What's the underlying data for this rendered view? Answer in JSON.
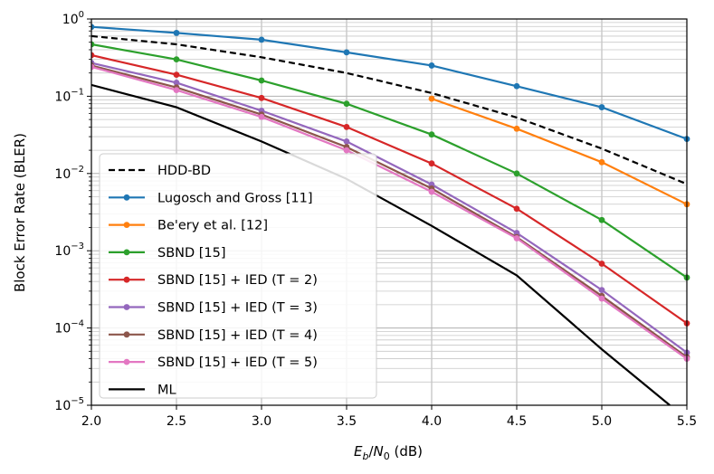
{
  "chart_data": {
    "type": "line",
    "xlabel": "Eb/N0 (dB)",
    "ylabel": "Block Error Rate (BLER)",
    "xlim": [
      2.0,
      5.5
    ],
    "ylim": [
      1e-05,
      1
    ],
    "yscale": "log",
    "grid": true,
    "legend_position": "lower-left",
    "x_ticks": [
      "2.0",
      "2.5",
      "3.0",
      "3.5",
      "4.0",
      "4.5",
      "5.0",
      "5.5"
    ],
    "y_ticks": [
      "10^0",
      "10^-1",
      "10^-2",
      "10^-3",
      "10^-4",
      "10^-5"
    ],
    "series": [
      {
        "name": "HDD-BD",
        "color": "#000000",
        "style": "dashed",
        "marker": false,
        "x": [
          2.0,
          2.5,
          3.0,
          3.5,
          4.0,
          4.5,
          5.0,
          5.5
        ],
        "y": [
          0.6,
          0.47,
          0.32,
          0.2,
          0.11,
          0.053,
          0.021,
          0.0073
        ]
      },
      {
        "name": "Lugosch and Gross [11]",
        "color": "#1f77b4",
        "style": "solid",
        "marker": true,
        "x": [
          2.0,
          2.5,
          3.0,
          3.5,
          4.0,
          4.5,
          5.0,
          5.5
        ],
        "y": [
          0.79,
          0.66,
          0.54,
          0.37,
          0.25,
          0.135,
          0.072,
          0.028
        ]
      },
      {
        "name": "Be'ery et al. [12]",
        "color": "#ff7f0e",
        "style": "solid",
        "marker": true,
        "x": [
          4.0,
          4.5,
          5.0,
          5.5
        ],
        "y": [
          0.093,
          0.038,
          0.014,
          0.004
        ]
      },
      {
        "name": "SBND [15]",
        "color": "#2ca02c",
        "style": "solid",
        "marker": true,
        "x": [
          2.0,
          2.5,
          3.0,
          3.5,
          4.0,
          4.5,
          5.0,
          5.5
        ],
        "y": [
          0.47,
          0.3,
          0.16,
          0.08,
          0.032,
          0.01,
          0.0025,
          0.00045
        ]
      },
      {
        "name": "SBND [15] + IED (T = 2)",
        "color": "#d62728",
        "style": "solid",
        "marker": true,
        "x": [
          2.0,
          2.5,
          3.0,
          3.5,
          4.0,
          4.5,
          5.0,
          5.5
        ],
        "y": [
          0.34,
          0.19,
          0.095,
          0.04,
          0.0135,
          0.0035,
          0.00068,
          0.000115
        ]
      },
      {
        "name": "SBND [15] + IED (T = 3)",
        "color": "#9467bd",
        "style": "solid",
        "marker": true,
        "x": [
          2.0,
          2.5,
          3.0,
          3.5,
          4.0,
          4.5,
          5.0,
          5.5
        ],
        "y": [
          0.27,
          0.15,
          0.065,
          0.026,
          0.0072,
          0.0017,
          0.00031,
          4.8e-05
        ]
      },
      {
        "name": "SBND [15] + IED (T = 4)",
        "color": "#8c564b",
        "style": "solid",
        "marker": true,
        "x": [
          2.0,
          2.5,
          3.0,
          3.5,
          4.0,
          4.5,
          5.0,
          5.5
        ],
        "y": [
          0.25,
          0.13,
          0.058,
          0.022,
          0.0064,
          0.0015,
          0.00026,
          4.2e-05
        ]
      },
      {
        "name": "SBND [15] + IED (T = 5)",
        "color": "#e377c2",
        "style": "solid",
        "marker": true,
        "x": [
          2.0,
          2.5,
          3.0,
          3.5,
          4.0,
          4.5,
          5.0,
          5.5
        ],
        "y": [
          0.24,
          0.12,
          0.054,
          0.02,
          0.0058,
          0.00145,
          0.00024,
          4e-05
        ]
      },
      {
        "name": "ML",
        "color": "#000000",
        "style": "solid",
        "marker": false,
        "x": [
          2.0,
          2.5,
          3.0,
          3.5,
          4.0,
          4.5,
          5.0,
          5.4
        ],
        "y": [
          0.14,
          0.072,
          0.026,
          0.0085,
          0.0021,
          0.00048,
          5.3e-05,
          1e-05
        ]
      }
    ]
  }
}
